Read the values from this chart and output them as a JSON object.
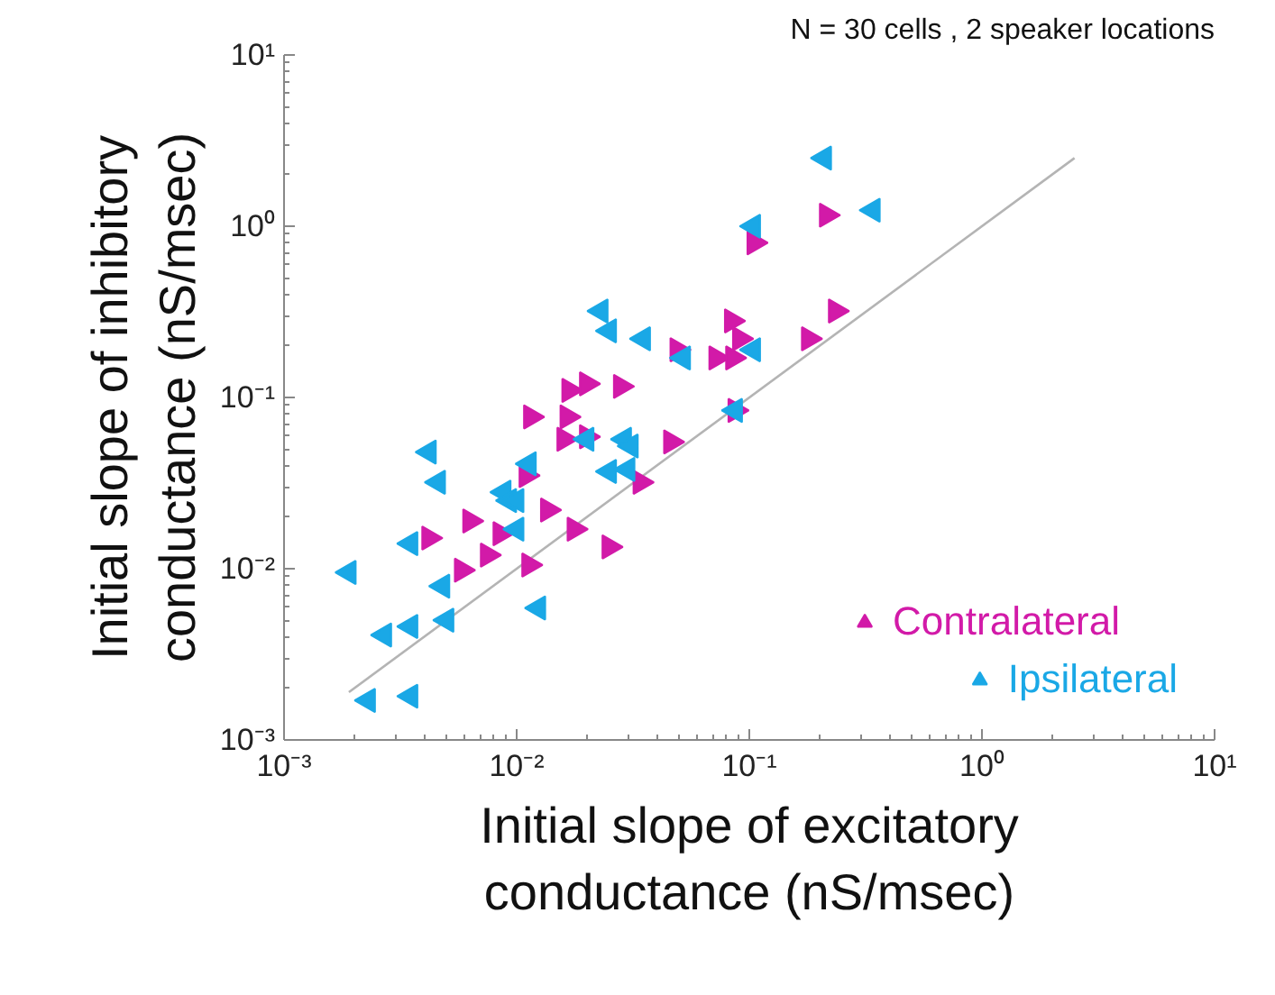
{
  "chart_data": {
    "type": "scatter",
    "xlabel": "Initial slope of excitatory\nconductance (nS/msec)",
    "ylabel": "Initial slope of inhibitory\nconductance (nS/msec)",
    "annotations": [
      "N = 30 cells , 2 speaker locations"
    ],
    "log": "xy",
    "grid": false,
    "legend": "bottom right",
    "xlim": [
      0.001,
      10
    ],
    "ylim": [
      0.001,
      10
    ],
    "xticks": [
      {
        "value": 0.001,
        "label": "10⁻³"
      },
      {
        "value": 0.01,
        "label": "10⁻²"
      },
      {
        "value": 0.1,
        "label": "10⁻¹"
      },
      {
        "value": 1,
        "label": "10⁰"
      },
      {
        "value": 10,
        "label": "10¹"
      }
    ],
    "yticks": [
      {
        "value": 0.001,
        "label": "10⁻³"
      },
      {
        "value": 0.01,
        "label": "10⁻²"
      },
      {
        "value": 0.1,
        "label": "10⁻¹"
      },
      {
        "value": 1,
        "label": "10⁰"
      },
      {
        "value": 10,
        "label": "10¹"
      }
    ],
    "series": [
      {
        "name": "Contralateral",
        "color": "#d21aa8",
        "marker": "triangle",
        "x": [
          0.215,
          0.105,
          0.235,
          0.18,
          0.084,
          0.091,
          0.049,
          0.072,
          0.085,
          0.087,
          0.0168,
          0.02,
          0.028,
          0.0115,
          0.0165,
          0.016,
          0.02,
          0.046,
          0.034,
          0.011,
          0.0136,
          0.0063,
          0.0085,
          0.0177,
          0.025,
          0.0075,
          0.0113,
          0.0058,
          0.0042
        ],
        "values": [
          1.16,
          0.8,
          0.32,
          0.22,
          0.28,
          0.22,
          0.19,
          0.17,
          0.17,
          0.084,
          0.11,
          0.12,
          0.116,
          0.077,
          0.077,
          0.057,
          0.059,
          0.055,
          0.032,
          0.035,
          0.022,
          0.019,
          0.016,
          0.017,
          0.0134,
          0.012,
          0.0105,
          0.0098,
          0.0151
        ]
      },
      {
        "name": "Ipsilateral",
        "color": "#1aa8e6",
        "marker": "triangle",
        "x": [
          0.21,
          0.34,
          0.104,
          0.023,
          0.025,
          0.035,
          0.052,
          0.104,
          0.087,
          0.02,
          0.029,
          0.031,
          0.025,
          0.03,
          0.0113,
          0.0088,
          0.0093,
          0.01,
          0.0046,
          0.0042,
          0.0048,
          0.0035,
          0.0019,
          0.0124,
          0.0027,
          0.0035,
          0.005,
          0.0023,
          0.0035,
          0.01
        ],
        "values": [
          2.5,
          1.24,
          1.0,
          0.32,
          0.245,
          0.22,
          0.17,
          0.19,
          0.084,
          0.057,
          0.057,
          0.052,
          0.037,
          0.038,
          0.041,
          0.028,
          0.025,
          0.017,
          0.032,
          0.048,
          0.0079,
          0.014,
          0.0095,
          0.0059,
          0.0041,
          0.0046,
          0.005,
          0.0017,
          0.0018,
          0.025
        ]
      },
      {
        "type": "line",
        "color": "#b4b4b4",
        "marker": "none",
        "x": [
          0.0019,
          2.5
        ],
        "values": [
          0.0019,
          2.5
        ]
      }
    ]
  }
}
